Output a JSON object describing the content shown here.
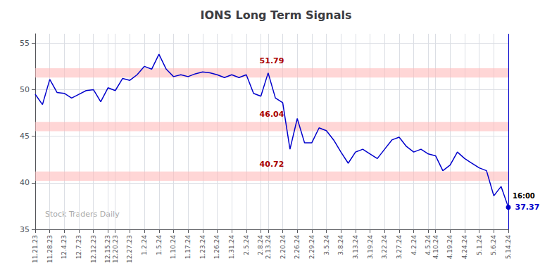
{
  "chart_data": {
    "type": "line",
    "title": "IONS Long Term Signals",
    "categories": [
      "11.21.23",
      null,
      "11.28.23",
      null,
      "12.4.23",
      null,
      "12.7.23",
      null,
      "12.12.23",
      null,
      "12.15.23",
      "12.20.23",
      null,
      "12.27.23",
      null,
      "1.2.24",
      null,
      "1.5.24",
      null,
      "1.10.24",
      null,
      "1.17.24",
      null,
      "1.23.24",
      null,
      "1.26.24",
      null,
      "1.31.24",
      null,
      "2.5.24",
      null,
      "2.8.24",
      "2.13.24",
      null,
      "2.20.24",
      null,
      "2.26.24",
      null,
      "2.29.24",
      null,
      "3.5.24",
      null,
      "3.8.24",
      null,
      "3.13.24",
      null,
      "3.19.24",
      null,
      "3.22.24",
      null,
      "3.27.24",
      null,
      "4.2.24",
      null,
      "4.5.24",
      "4.10.24",
      null,
      "4.19.24",
      null,
      "4.24.24",
      null,
      "5.1.24",
      null,
      "5.6.24",
      null,
      "5.14.24"
    ],
    "values": [
      49.5,
      48.4,
      51.1,
      49.7,
      49.6,
      49.1,
      49.5,
      49.9,
      50.0,
      48.7,
      50.2,
      49.9,
      51.2,
      51.0,
      51.6,
      52.5,
      52.2,
      53.8,
      52.2,
      51.4,
      51.6,
      51.4,
      51.7,
      51.9,
      51.8,
      51.6,
      51.3,
      51.6,
      51.3,
      51.6,
      49.6,
      49.3,
      51.8,
      49.1,
      48.6,
      43.6,
      46.9,
      44.3,
      44.3,
      45.9,
      45.6,
      44.6,
      43.3,
      42.1,
      43.3,
      43.6,
      43.1,
      42.6,
      43.6,
      44.6,
      44.9,
      43.9,
      43.3,
      43.6,
      43.1,
      42.9,
      41.3,
      41.9,
      43.3,
      42.6,
      42.1,
      41.6,
      41.3,
      38.6,
      39.6,
      37.37
    ],
    "color": "#0000cc",
    "ylim": [
      35,
      56
    ],
    "yticks": [
      35,
      40,
      45,
      50,
      55
    ],
    "grid": true,
    "bands": [
      {
        "from": 51.29,
        "to": 52.29,
        "label": "51.79"
      },
      {
        "from": 45.54,
        "to": 46.54,
        "label": "46.04"
      },
      {
        "from": 40.22,
        "to": 41.22,
        "label": "40.72"
      }
    ],
    "band_color": "#ffbbbb",
    "band_label_color": "#aa0000",
    "annotations": [
      {
        "text": "16:00",
        "color": "#000000"
      },
      {
        "text": "37.37",
        "color": "#0000cc"
      }
    ],
    "watermark": {
      "text": "Stock Traders Daily",
      "color": "#aaaaaa"
    }
  }
}
